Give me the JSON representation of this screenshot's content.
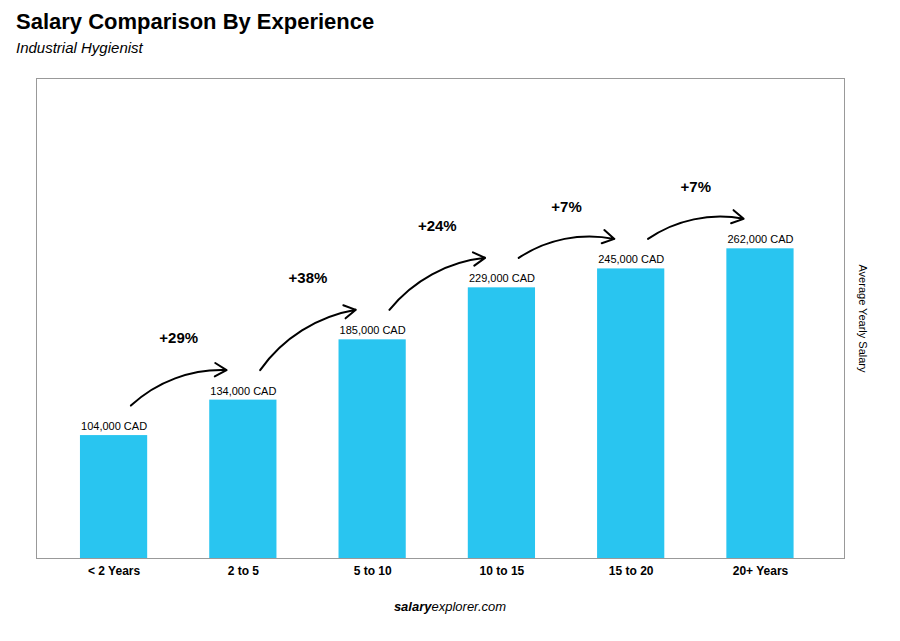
{
  "chart_data": {
    "type": "bar",
    "title": "Salary Comparison By Experience",
    "subtitle": "Industrial Hygienist",
    "ylabel": "Average Yearly Salary",
    "categories": [
      "< 2 Years",
      "2 to 5",
      "5 to 10",
      "10 to 15",
      "15 to 20",
      "20+ Years"
    ],
    "values": [
      104000,
      134000,
      185000,
      229000,
      245000,
      262000
    ],
    "value_labels": [
      "104,000 CAD",
      "134,000 CAD",
      "185,000 CAD",
      "229,000 CAD",
      "245,000 CAD",
      "262,000 CAD"
    ],
    "data_labels": true,
    "color": "#29c5f0",
    "ylim": [
      0,
      406100
    ],
    "yticks": [],
    "tick_labels": "x",
    "grid": false,
    "annotations": [
      "+29%",
      "+38%",
      "+24%",
      "+7%",
      "+7%"
    ],
    "watermark": [
      "salary",
      "explorer.com"
    ]
  }
}
